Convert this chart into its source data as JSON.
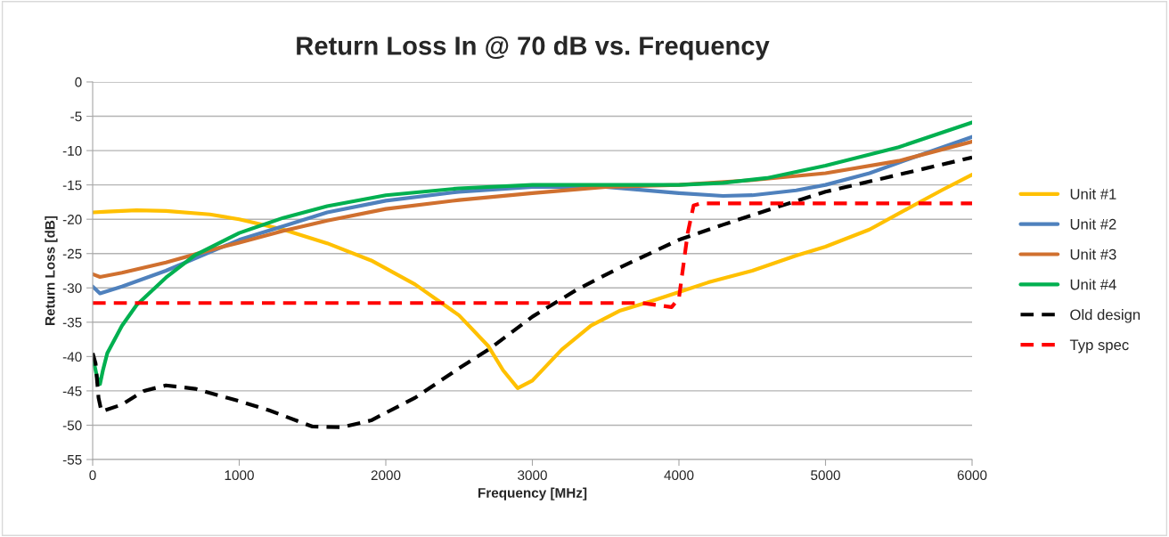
{
  "chart_data": {
    "type": "line",
    "title": "Return Loss In @ 70 dB vs. Frequency",
    "xlabel": "Frequency [MHz]",
    "ylabel": "Return Loss [dB]",
    "xlim": [
      0,
      6000
    ],
    "xticks": [
      0,
      1000,
      2000,
      3000,
      4000,
      5000,
      6000
    ],
    "ylim": [
      -55,
      0
    ],
    "yticks": [
      -55,
      -50,
      -45,
      -40,
      -35,
      -30,
      -25,
      -20,
      -15,
      -10,
      -5,
      0
    ],
    "grid": "y",
    "legend": "right",
    "marker": "none",
    "series": [
      {
        "name": "Unit #1",
        "color": "#ffc000",
        "line_style": "solid",
        "x": [
          0,
          100,
          300,
          500,
          800,
          1000,
          1300,
          1600,
          1900,
          2200,
          2500,
          2700,
          2800,
          2900,
          3000,
          3200,
          3400,
          3600,
          3800,
          4000,
          4200,
          4500,
          4800,
          5000,
          5300,
          5600,
          5800,
          6000
        ],
        "values": [
          -19,
          -18.9,
          -18.7,
          -18.8,
          -19.3,
          -20,
          -21.5,
          -23.5,
          -26,
          -29.5,
          -34,
          -38.5,
          -42,
          -44.6,
          -43.5,
          -39,
          -35.5,
          -33.3,
          -32,
          -30.6,
          -29.2,
          -27.5,
          -25.3,
          -24,
          -21.5,
          -18,
          -15.7,
          -13.5
        ]
      },
      {
        "name": "Unit #2",
        "color": "#4f81bd",
        "line_style": "solid",
        "x": [
          0,
          50,
          200,
          500,
          800,
          1000,
          1300,
          1600,
          2000,
          2500,
          3000,
          3500,
          4000,
          4300,
          4500,
          4800,
          5000,
          5300,
          5600,
          6000
        ],
        "values": [
          -29.8,
          -30.8,
          -29.8,
          -27.5,
          -24.8,
          -23,
          -21,
          -19,
          -17.3,
          -16,
          -15.3,
          -15.3,
          -16.2,
          -16.6,
          -16.5,
          -15.8,
          -15,
          -13.3,
          -11,
          -8
        ]
      },
      {
        "name": "Unit #3",
        "color": "#d0702f",
        "line_style": "solid",
        "x": [
          0,
          50,
          200,
          500,
          800,
          1000,
          1300,
          1600,
          2000,
          2500,
          3000,
          3500,
          4000,
          4500,
          5000,
          5500,
          6000
        ],
        "values": [
          -28,
          -28.4,
          -27.8,
          -26.3,
          -24.5,
          -23.4,
          -21.7,
          -20.2,
          -18.5,
          -17.2,
          -16.2,
          -15.3,
          -15,
          -14.3,
          -13.3,
          -11.5,
          -8.7
        ]
      },
      {
        "name": "Unit #4",
        "color": "#00b050",
        "line_style": "solid",
        "x": [
          0,
          30,
          50,
          70,
          100,
          200,
          300,
          500,
          700,
          1000,
          1300,
          1600,
          2000,
          2500,
          3000,
          3500,
          4000,
          4300,
          4600,
          5000,
          5500,
          6000
        ],
        "values": [
          -40,
          -43,
          -44,
          -42,
          -39.5,
          -35.5,
          -32.5,
          -28.5,
          -25.2,
          -22,
          -19.8,
          -18.1,
          -16.5,
          -15.5,
          -15,
          -15,
          -15,
          -14.7,
          -14,
          -12.2,
          -9.5,
          -5.9
        ]
      },
      {
        "name": "Old design",
        "color": "#000000",
        "line_style": "dashed",
        "x": [
          0,
          20,
          40,
          60,
          200,
          350,
          500,
          700,
          1000,
          1200,
          1500,
          1700,
          1900,
          2200,
          2500,
          2700,
          3000,
          3300,
          3600,
          4000,
          4300,
          4600,
          5000,
          5400,
          6000
        ],
        "values": [
          -39.5,
          -41,
          -46,
          -48,
          -47,
          -45,
          -44.2,
          -44.7,
          -46.5,
          -47.8,
          -50.2,
          -50.3,
          -49.3,
          -46,
          -41.7,
          -39,
          -34.2,
          -30.3,
          -27,
          -23,
          -20.8,
          -18.7,
          -16,
          -14,
          -11
        ]
      },
      {
        "name": "Typ spec",
        "color": "#ff0000",
        "line_style": "dashed",
        "x": [
          0,
          3750,
          3950,
          4000,
          4060,
          4100,
          4150,
          6000
        ],
        "values": [
          -32.2,
          -32.2,
          -32.8,
          -31.5,
          -22,
          -18,
          -17.7,
          -17.7
        ]
      }
    ]
  }
}
